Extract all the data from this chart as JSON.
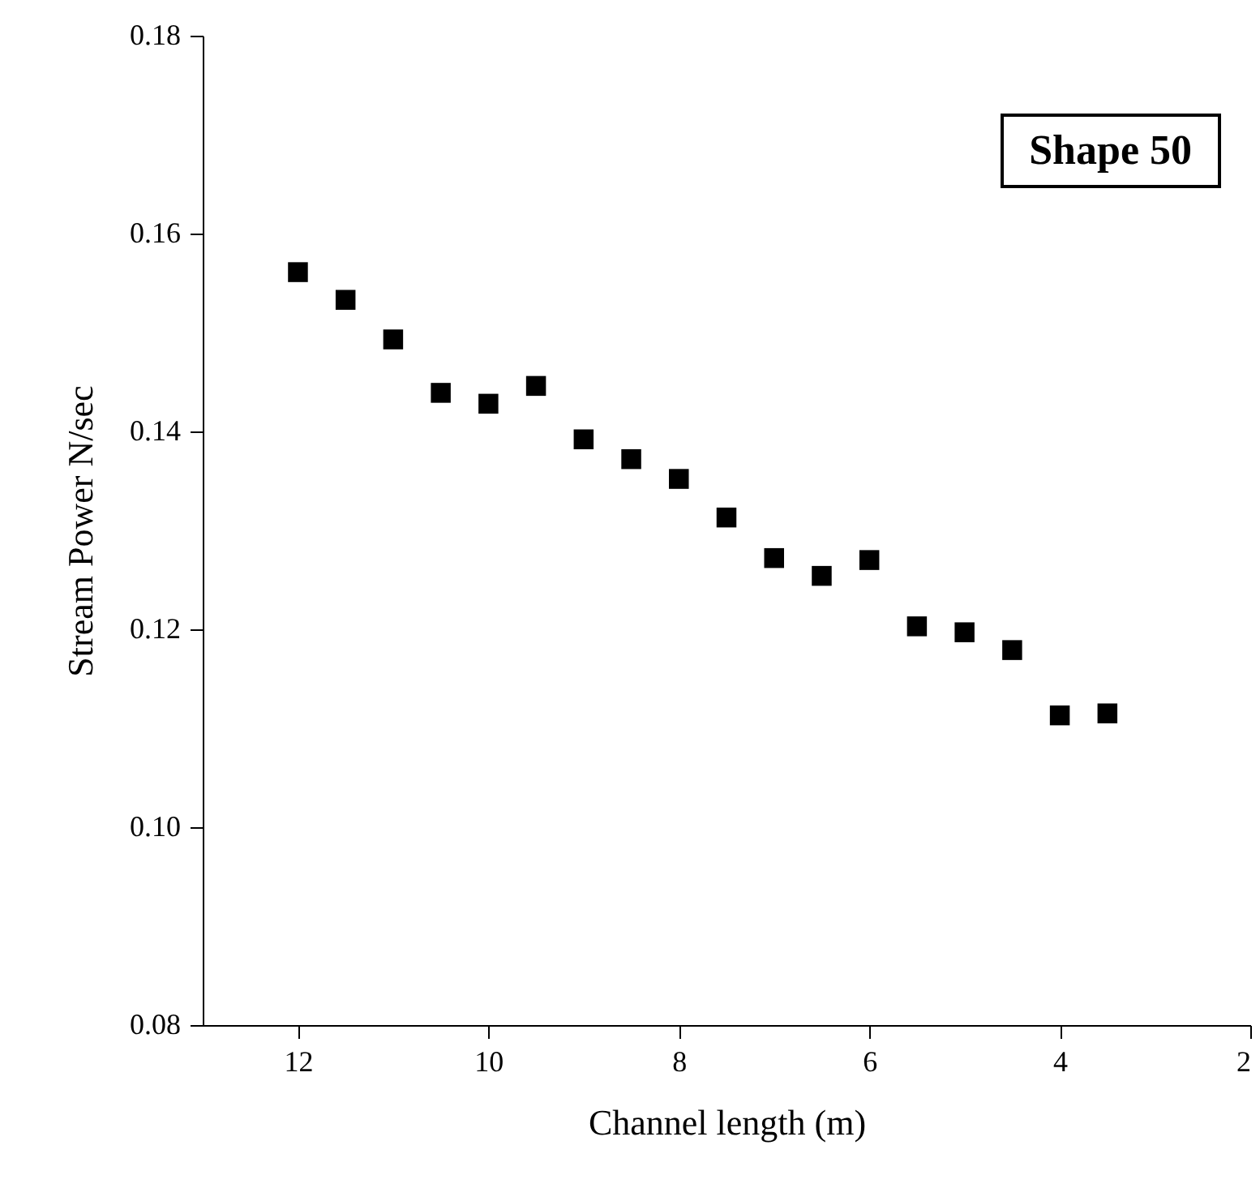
{
  "chart_data": {
    "type": "scatter",
    "xlabel": "Channel length (m)",
    "ylabel": "Stream Power N/sec",
    "annotations": [
      "Shape 50"
    ],
    "x": [
      12,
      11.5,
      11,
      10.5,
      10,
      9.5,
      9,
      8.5,
      8,
      7.5,
      7,
      6.5,
      6,
      5.5,
      5,
      4.5,
      4,
      3.5
    ],
    "series": [
      {
        "color": "#000000",
        "values": [
          0.1561,
          0.1533,
          0.1493,
          0.1439,
          0.1428,
          0.1446,
          0.1392,
          0.1372,
          0.1352,
          0.1313,
          0.1272,
          0.1254,
          0.127,
          0.1203,
          0.1197,
          0.1179,
          0.1113,
          0.1115
        ]
      }
    ],
    "xlim": [
      13,
      2
    ],
    "xticks": [
      12,
      10,
      8,
      6,
      4,
      2
    ],
    "ylim": [
      0.08,
      0.18
    ],
    "yticks": [
      0.08,
      {
        "value": 0.1,
        "label": "0.10"
      },
      0.12,
      0.14,
      0.16,
      0.18
    ],
    "marker": "square",
    "grid": false
  }
}
